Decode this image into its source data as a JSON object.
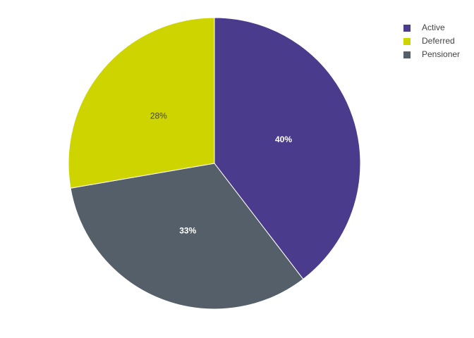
{
  "chart_data": {
    "type": "pie",
    "categories": [
      "Active",
      "Deferred",
      "Pensioner"
    ],
    "values": [
      40,
      28,
      33
    ],
    "value_labels": [
      "40%",
      "28%",
      "33%"
    ],
    "colors": [
      "#4a3b8c",
      "#cdd400",
      "#545f69"
    ],
    "sort": true
  }
}
